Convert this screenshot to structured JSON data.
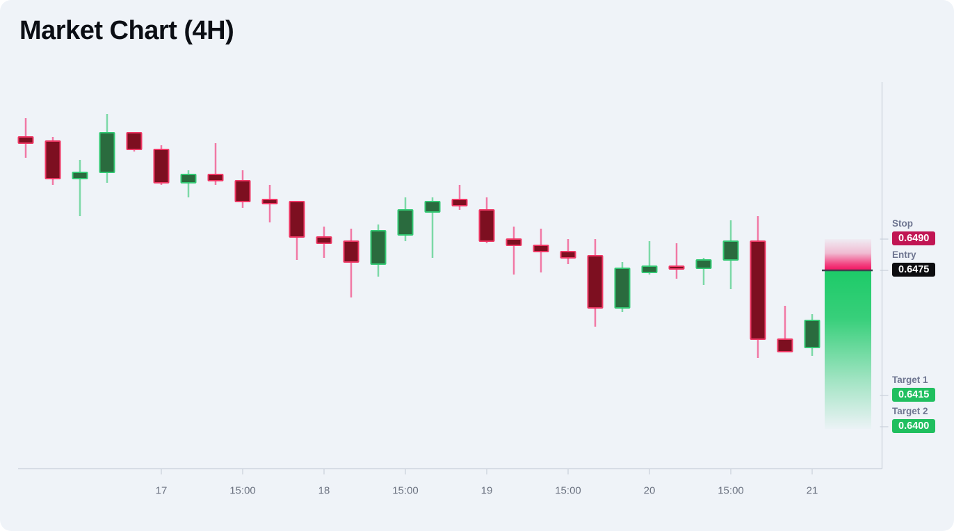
{
  "title": "Market Chart (4H)",
  "colors": {
    "background": "#eff3f8",
    "bullish_border": "#33c873",
    "bullish_fill": "#2a6b3e",
    "bullish_wick": "rgba(30,195,100,0.55)",
    "bearish_border": "#ee3764",
    "bearish_fill": "#7d0f20",
    "bearish_wick": "rgba(243,18,96,0.55)",
    "stop_badge": "#c11553",
    "entry_badge": "#0d0d10",
    "target_badge": "#20bf5f",
    "zone_pink": "#f31260",
    "zone_green": "#17c964",
    "entry_line": "#3d414d",
    "axis_line": "#c9d0da",
    "axis_text": "#6b7280"
  },
  "levels": {
    "stop": {
      "label": "Stop",
      "value": "0.6490"
    },
    "entry": {
      "label": "Entry",
      "value": "0.6475"
    },
    "target1": {
      "label": "Target 1",
      "value": "0.6415"
    },
    "target2": {
      "label": "Target 2",
      "value": "0.6400"
    }
  },
  "chart_data": {
    "type": "candlestick",
    "title": "Market Chart (4H)",
    "timeframe": "4H",
    "price_levels": {
      "stop": 0.649,
      "entry": 0.6475,
      "target1": 0.6415,
      "target2": 0.64
    },
    "x_tick_labels": [
      "17",
      "15:00",
      "18",
      "15:00",
      "19",
      "15:00",
      "20",
      "15:00",
      "21"
    ],
    "x_tick_indices": [
      5,
      8,
      11,
      14,
      17,
      20,
      23,
      26,
      29
    ],
    "candles": [
      {
        "o": 0.6539,
        "h": 0.6548,
        "l": 0.6529,
        "c": 0.6536
      },
      {
        "o": 0.6537,
        "h": 0.6539,
        "l": 0.6516,
        "c": 0.6519
      },
      {
        "o": 0.6519,
        "h": 0.6528,
        "l": 0.6501,
        "c": 0.6522
      },
      {
        "o": 0.6522,
        "h": 0.655,
        "l": 0.6517,
        "c": 0.6541
      },
      {
        "o": 0.6541,
        "h": 0.6541,
        "l": 0.6532,
        "c": 0.6533
      },
      {
        "o": 0.6533,
        "h": 0.6535,
        "l": 0.6516,
        "c": 0.6517
      },
      {
        "o": 0.6517,
        "h": 0.6523,
        "l": 0.651,
        "c": 0.6521
      },
      {
        "o": 0.6521,
        "h": 0.6536,
        "l": 0.6516,
        "c": 0.6518
      },
      {
        "o": 0.6518,
        "h": 0.6523,
        "l": 0.6505,
        "c": 0.6508
      },
      {
        "o": 0.6509,
        "h": 0.6516,
        "l": 0.6498,
        "c": 0.6507
      },
      {
        "o": 0.6508,
        "h": 0.6508,
        "l": 0.648,
        "c": 0.6491
      },
      {
        "o": 0.6491,
        "h": 0.6496,
        "l": 0.6481,
        "c": 0.6488
      },
      {
        "o": 0.6489,
        "h": 0.6495,
        "l": 0.6462,
        "c": 0.6479
      },
      {
        "o": 0.6478,
        "h": 0.6497,
        "l": 0.6472,
        "c": 0.6494
      },
      {
        "o": 0.6492,
        "h": 0.651,
        "l": 0.6489,
        "c": 0.6504
      },
      {
        "o": 0.6503,
        "h": 0.651,
        "l": 0.6481,
        "c": 0.6508
      },
      {
        "o": 0.6509,
        "h": 0.6516,
        "l": 0.6504,
        "c": 0.6506
      },
      {
        "o": 0.6504,
        "h": 0.651,
        "l": 0.6488,
        "c": 0.6489
      },
      {
        "o": 0.649,
        "h": 0.6496,
        "l": 0.6473,
        "c": 0.6487
      },
      {
        "o": 0.6487,
        "h": 0.6495,
        "l": 0.6474,
        "c": 0.6484
      },
      {
        "o": 0.6484,
        "h": 0.649,
        "l": 0.6478,
        "c": 0.6481
      },
      {
        "o": 0.6482,
        "h": 0.649,
        "l": 0.6448,
        "c": 0.6457
      },
      {
        "o": 0.6457,
        "h": 0.6479,
        "l": 0.6455,
        "c": 0.6476
      },
      {
        "o": 0.6474,
        "h": 0.6489,
        "l": 0.6473,
        "c": 0.6477
      },
      {
        "o": 0.6477,
        "h": 0.6488,
        "l": 0.6471,
        "c": 0.6476
      },
      {
        "o": 0.6476,
        "h": 0.6481,
        "l": 0.6468,
        "c": 0.648
      },
      {
        "o": 0.648,
        "h": 0.6499,
        "l": 0.6466,
        "c": 0.6489
      },
      {
        "o": 0.6489,
        "h": 0.6501,
        "l": 0.6433,
        "c": 0.6442
      },
      {
        "o": 0.6442,
        "h": 0.6458,
        "l": 0.6436,
        "c": 0.6436
      },
      {
        "o": 0.6438,
        "h": 0.6454,
        "l": 0.6434,
        "c": 0.6451
      }
    ]
  }
}
